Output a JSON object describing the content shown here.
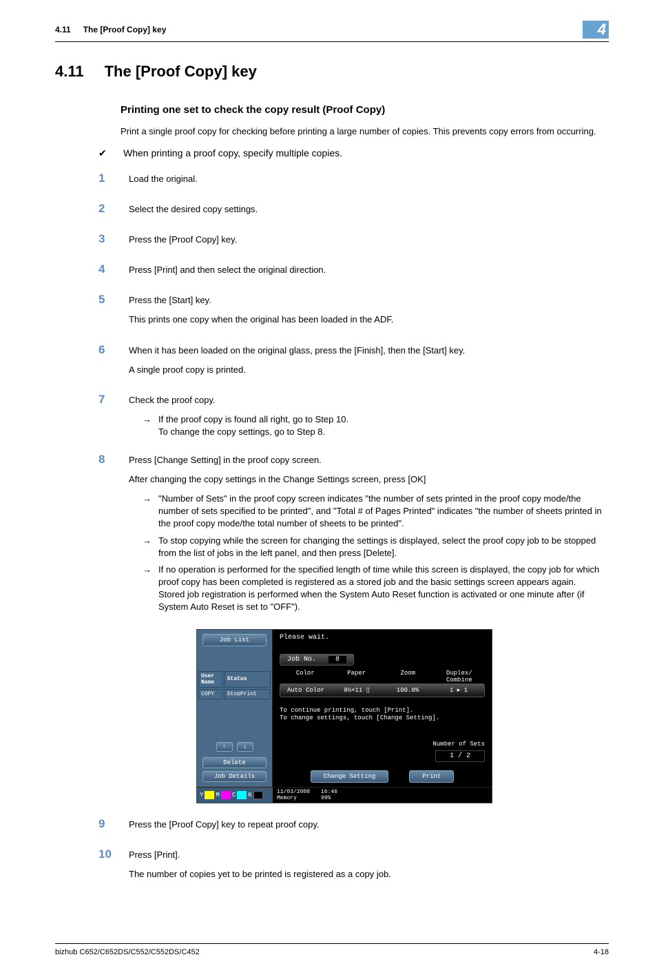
{
  "header": {
    "section_num": "4.11",
    "section_title": "The [Proof Copy] key",
    "chapter_num": "4"
  },
  "title": {
    "num": "4.11",
    "text": "The [Proof Copy] key"
  },
  "subheading": "Printing one set to check the copy result (Proof Copy)",
  "intro": "Print a single proof copy for checking before printing a large number of copies. This prevents copy errors from occurring.",
  "check_note": "When printing a proof copy, specify multiple copies.",
  "steps": {
    "s1": "Load the original.",
    "s2": "Select the desired copy settings.",
    "s3": "Press the [Proof Copy] key.",
    "s4": "Press [Print] and then select the original direction.",
    "s5a": "Press the [Start] key.",
    "s5b": "This prints one copy when the original has been loaded in the ADF.",
    "s6a": "When it has been loaded on the original glass, press the [Finish], then the [Start] key.",
    "s6b": "A single proof copy is printed.",
    "s7": "Check the proof copy.",
    "s7sub": "If the proof copy is found all right, go to Step 10.\nTo change the copy settings, go to Step 8.",
    "s8a": "Press [Change Setting] in the proof copy screen.",
    "s8b": "After changing the copy settings in the Change Settings screen, press [OK]",
    "s8sub1": "\"Number of Sets\" in the proof copy screen indicates \"the number of sets printed in the proof copy mode/the number of sets specified to be printed\", and \"Total # of Pages Printed\" indicates \"the number of sheets printed in the proof copy mode/the total number of sheets to be printed\".",
    "s8sub2": "To stop copying while the screen for changing the settings is displayed, select the proof copy job to be stopped from the list of jobs in the left panel, and then press [Delete].",
    "s8sub3": "If no operation is performed for the specified length of time while this screen is displayed, the copy job for which proof copy has been completed is registered as a stored job and the basic settings screen appears again.\nStored job registration is performed when the System Auto Reset function is activated or one minute after (if System Auto Reset is set to \"OFF\").",
    "s9": "Press the [Proof Copy] key to repeat proof copy.",
    "s10a": "Press [Print].",
    "s10b": "The number of copies yet to be printed is registered as a copy job."
  },
  "panel": {
    "joblist": "Job List",
    "user_name": "User\nName",
    "status": "Status",
    "copy": "COPY",
    "stopprint": "StopPrint",
    "delete": "Delete",
    "job_details": "Job Details",
    "msg": "Please wait.",
    "jobno_l": "Job No.",
    "jobno_v": "8",
    "col_color": "Color",
    "col_paper": "Paper",
    "col_zoom": "Zoom",
    "col_duplex": "Duplex/\nCombine",
    "val_color": "Auto Color",
    "val_paper": "8½×11 ▯",
    "val_zoom": "100.0%",
    "val_duplex": "1 ▸ 1",
    "instr1": "To continue printing, touch [Print].",
    "instr2": "To change settings, touch [Change Setting].",
    "sets_l": "Number of Sets",
    "sets_v": "1 / 2",
    "change_setting": "Change Setting",
    "print": "Print",
    "date": "11/03/2008",
    "time": "16:46",
    "memory": "Memory",
    "mem_v": "99%"
  },
  "footer": {
    "left": "bizhub C652/C652DS/C552/C552DS/C452",
    "right": "4-18"
  }
}
